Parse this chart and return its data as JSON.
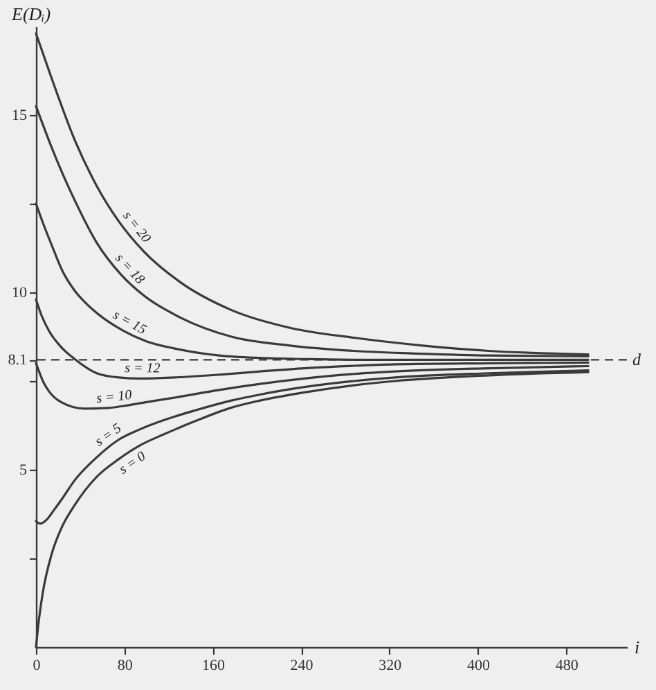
{
  "chart_data": {
    "type": "line",
    "ylabel": "E(Dᵢ)",
    "xlabel": "i",
    "xlim": [
      0,
      535
    ],
    "ylim": [
      0,
      17.5
    ],
    "xticks": [
      0,
      80,
      160,
      240,
      320,
      400,
      480
    ],
    "yticks": [
      {
        "value": 2.5,
        "label": null
      },
      5,
      {
        "value": 7.5,
        "label": null
      },
      8.1,
      10,
      {
        "value": 12.5,
        "label": null
      },
      15
    ],
    "ref_lines": [
      {
        "axis": "y",
        "value": 8.1,
        "label": "d",
        "line_style": "dashed"
      }
    ],
    "series": [
      {
        "name": "s = 20",
        "color": "#3a3a3a",
        "x": [
          0,
          14,
          35,
          55,
          75,
          98,
          130,
          177,
          230,
          288,
          350,
          410,
          500
        ],
        "values": [
          17.3,
          16.05,
          14.3,
          13.0,
          12.0,
          11.14,
          10.3,
          9.5,
          9.0,
          8.72,
          8.5,
          8.35,
          8.25
        ]
      },
      {
        "name": "s = 18",
        "color": "#3a3a3a",
        "x": [
          0,
          14,
          24,
          35,
          55,
          77,
          98,
          130,
          177,
          230,
          288,
          350,
          410,
          500
        ],
        "values": [
          15.25,
          14.1,
          13.35,
          12.6,
          11.4,
          10.5,
          9.9,
          9.3,
          8.75,
          8.5,
          8.35,
          8.27,
          8.22,
          8.2
        ]
      },
      {
        "name": "s = 15",
        "color": "#3a3a3a",
        "x": [
          0,
          7,
          14,
          24,
          35,
          45,
          55,
          79,
          100,
          125,
          166,
          203,
          243,
          288,
          500
        ],
        "values": [
          12.5,
          11.9,
          11.35,
          10.6,
          10.05,
          9.7,
          9.42,
          8.92,
          8.62,
          8.42,
          8.22,
          8.15,
          8.12,
          8.1,
          8.1
        ]
      },
      {
        "name": "s = 12",
        "color": "#3a3a3a",
        "x": [
          0,
          5,
          12,
          23,
          35,
          55,
          75,
          95,
          125,
          166,
          203,
          243,
          288,
          325,
          410,
          500
        ],
        "values": [
          9.8,
          9.35,
          8.9,
          8.45,
          8.12,
          7.72,
          7.6,
          7.57,
          7.6,
          7.68,
          7.77,
          7.86,
          7.93,
          7.97,
          8.0,
          8.02
        ]
      },
      {
        "name": "s = 10",
        "color": "#3a3a3a",
        "x": [
          0,
          3,
          7,
          12,
          23,
          44,
          65,
          84,
          105,
          125,
          166,
          203,
          243,
          288,
          325,
          410,
          500
        ],
        "values": [
          8.0,
          7.75,
          7.45,
          7.2,
          6.9,
          6.72,
          6.74,
          6.82,
          6.93,
          7.03,
          7.25,
          7.42,
          7.57,
          7.7,
          7.77,
          7.86,
          7.92
        ]
      },
      {
        "name": "s = 5",
        "color": "#3a3a3a",
        "x": [
          0,
          4,
          10,
          16,
          23,
          35,
          55,
          75,
          95,
          116,
          145,
          177,
          203,
          243,
          288,
          325,
          410,
          500
        ],
        "values": [
          3.55,
          3.48,
          3.6,
          3.85,
          4.15,
          4.7,
          5.35,
          5.85,
          6.15,
          6.4,
          6.68,
          6.95,
          7.12,
          7.33,
          7.5,
          7.6,
          7.72,
          7.8
        ]
      },
      {
        "name": "s = 0",
        "color": "#3a3a3a",
        "x": [
          0,
          2,
          6,
          14,
          23,
          35,
          55,
          75,
          95,
          116,
          145,
          177,
          203,
          243,
          288,
          325,
          410,
          500
        ],
        "values": [
          0,
          0.6,
          1.5,
          2.6,
          3.35,
          4.0,
          4.8,
          5.3,
          5.7,
          6.0,
          6.38,
          6.75,
          6.95,
          7.18,
          7.38,
          7.5,
          7.66,
          7.75
        ]
      }
    ]
  }
}
